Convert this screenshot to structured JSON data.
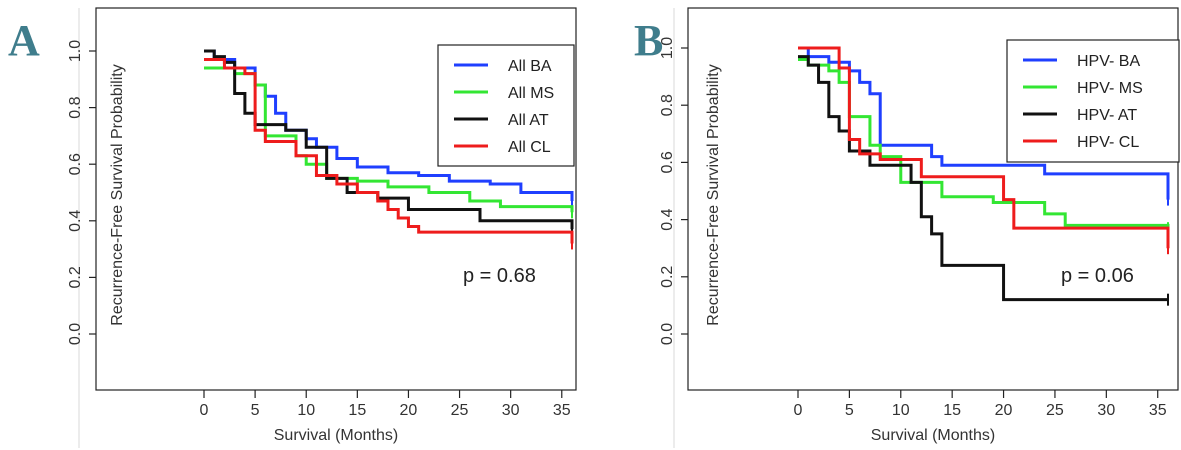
{
  "chart_data": [
    {
      "type": "line",
      "panel": "A",
      "xlabel": "Survival (Months)",
      "ylabel": "Recurrence-Free Survival Probability",
      "xlim": [
        0,
        36
      ],
      "ylim": [
        0,
        1
      ],
      "xticks": [
        "0",
        "5",
        "10",
        "15",
        "20",
        "25",
        "30",
        "35"
      ],
      "yticks": [
        "0.0",
        "0.2",
        "0.4",
        "0.6",
        "0.8",
        "1.0"
      ],
      "grid": false,
      "legend_position": "top-right",
      "annotation": "p = 0.68",
      "series": [
        {
          "name": "All BA",
          "color": "#1f3fff",
          "x": [
            0,
            1,
            3,
            5,
            6,
            7,
            8,
            10,
            11,
            13,
            15,
            18,
            21,
            24,
            28,
            31,
            36
          ],
          "y": [
            1.0,
            0.97,
            0.94,
            0.88,
            0.84,
            0.78,
            0.72,
            0.69,
            0.66,
            0.62,
            0.59,
            0.57,
            0.56,
            0.54,
            0.53,
            0.5,
            0.47
          ]
        },
        {
          "name": "All MS",
          "color": "#33e633",
          "x": [
            0,
            1,
            3,
            5,
            6,
            9,
            10,
            12,
            15,
            18,
            22,
            26,
            29,
            36
          ],
          "y": [
            0.94,
            0.94,
            0.92,
            0.88,
            0.7,
            0.63,
            0.6,
            0.55,
            0.54,
            0.52,
            0.5,
            0.47,
            0.45,
            0.43
          ]
        },
        {
          "name": "All AT",
          "color": "#111111",
          "x": [
            0,
            1,
            2,
            3,
            4,
            5,
            8,
            10,
            12,
            14,
            17,
            20,
            27,
            36
          ],
          "y": [
            1.0,
            0.98,
            0.96,
            0.85,
            0.78,
            0.74,
            0.72,
            0.66,
            0.55,
            0.5,
            0.48,
            0.44,
            0.4,
            0.37
          ]
        },
        {
          "name": "All CL",
          "color": "#ee1c1c",
          "x": [
            0,
            1,
            2,
            4,
            5,
            6,
            9,
            11,
            13,
            15,
            17,
            18,
            19,
            20,
            21,
            36
          ],
          "y": [
            0.97,
            0.97,
            0.94,
            0.92,
            0.72,
            0.68,
            0.63,
            0.56,
            0.53,
            0.5,
            0.47,
            0.44,
            0.41,
            0.38,
            0.36,
            0.32
          ]
        }
      ]
    },
    {
      "type": "line",
      "panel": "B",
      "xlabel": "Survival (Months)",
      "ylabel": "Recurrence-Free Survival Probability",
      "xlim": [
        0,
        36
      ],
      "ylim": [
        0,
        1
      ],
      "xticks": [
        "0",
        "5",
        "10",
        "15",
        "20",
        "25",
        "30",
        "35"
      ],
      "yticks": [
        "0.0",
        "0.2",
        "0.4",
        "0.6",
        "0.8",
        "1.0"
      ],
      "grid": false,
      "legend_position": "top-right",
      "annotation": "p = 0.06",
      "series": [
        {
          "name": "HPV- BA",
          "color": "#1f3fff",
          "x": [
            0,
            1,
            3,
            5,
            6,
            7,
            8,
            13,
            14,
            24,
            36
          ],
          "y": [
            1.0,
            0.97,
            0.95,
            0.92,
            0.88,
            0.84,
            0.66,
            0.62,
            0.59,
            0.56,
            0.47
          ]
        },
        {
          "name": "HPV- MS",
          "color": "#33e633",
          "x": [
            0,
            1,
            3,
            4,
            5,
            7,
            8,
            10,
            14,
            19,
            24,
            26,
            36
          ],
          "y": [
            0.96,
            0.94,
            0.92,
            0.88,
            0.76,
            0.66,
            0.62,
            0.53,
            0.48,
            0.46,
            0.42,
            0.38,
            0.37
          ]
        },
        {
          "name": "HPV- AT",
          "color": "#111111",
          "x": [
            0,
            1,
            2,
            3,
            4,
            5,
            7,
            11,
            12,
            13,
            14,
            20,
            36
          ],
          "y": [
            0.97,
            0.94,
            0.88,
            0.76,
            0.71,
            0.64,
            0.59,
            0.53,
            0.41,
            0.35,
            0.24,
            0.12,
            0.12
          ]
        },
        {
          "name": "HPV- CL",
          "color": "#ee1c1c",
          "x": [
            0,
            3,
            4,
            5,
            6,
            8,
            12,
            20,
            21,
            36
          ],
          "y": [
            1.0,
            1.0,
            0.93,
            0.68,
            0.63,
            0.61,
            0.55,
            0.47,
            0.37,
            0.3
          ]
        }
      ]
    }
  ]
}
